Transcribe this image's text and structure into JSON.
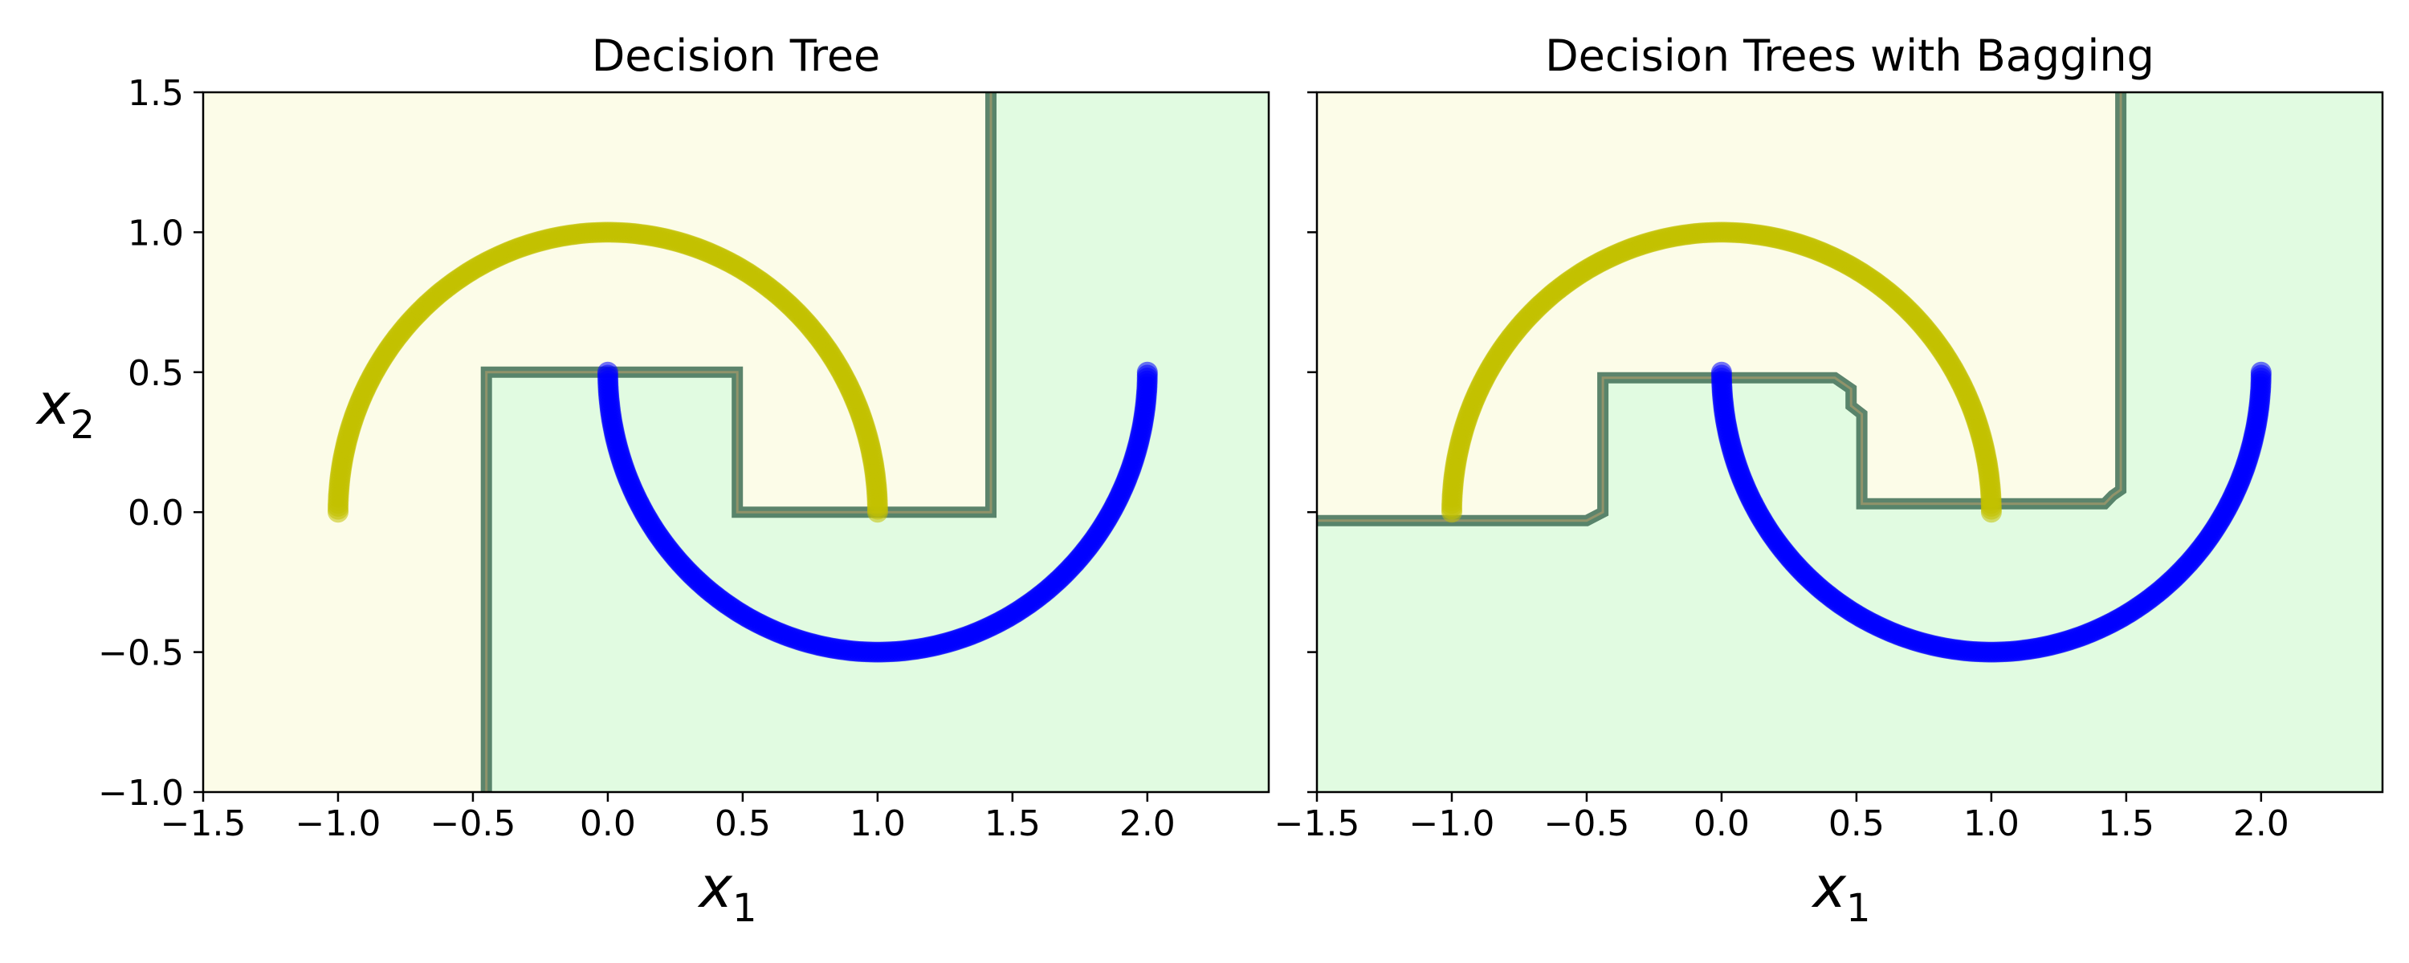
{
  "chart_data": [
    {
      "type": "scatter",
      "title": "Decision Tree",
      "xlabel": "x",
      "xlabel_sub": "1",
      "ylabel": "x",
      "ylabel_sub": "2",
      "xlim": [
        -1.5,
        2.45
      ],
      "ylim": [
        -1.0,
        1.5
      ],
      "xticks": [
        -1.5,
        -1.0,
        -0.5,
        0.0,
        0.5,
        1.0,
        1.5,
        2.0
      ],
      "xtick_labels": [
        "−1.5",
        "−1.0",
        "−0.5",
        "0.0",
        "0.5",
        "1.0",
        "1.5",
        "2.0"
      ],
      "yticks": [
        -1.0,
        -0.5,
        0.0,
        0.5,
        1.0,
        1.5
      ],
      "ytick_labels": [
        "−1.0",
        "−0.5",
        "0.0",
        "0.5",
        "1.0",
        "1.5"
      ],
      "show_ytick_labels": true,
      "grid": false,
      "regions": {
        "class_0_color": "#fcfce8",
        "class_1_color": "#e1fbe1",
        "class_0_polygon": [
          [
            -1.5,
            -1.0
          ],
          [
            -0.45,
            -1.0
          ],
          [
            -0.45,
            0.5
          ],
          [
            0.48,
            0.5
          ],
          [
            0.48,
            0.0
          ],
          [
            1.42,
            0.0
          ],
          [
            1.42,
            1.5
          ],
          [
            -1.5,
            1.5
          ]
        ]
      },
      "boundary": [
        [
          -0.45,
          -1.0
        ],
        [
          -0.45,
          0.5
        ],
        [
          0.48,
          0.5
        ],
        [
          0.48,
          0.0
        ],
        [
          1.42,
          0.0
        ],
        [
          1.42,
          1.5
        ]
      ],
      "boundary_color": "#3f6f56",
      "series": [
        {
          "marker_color": "#c3c100",
          "curve": "upper_moon",
          "center": [
            0.0,
            0.0
          ],
          "radius": 1.0
        },
        {
          "marker_color": "#0000ff",
          "curve": "lower_moon",
          "center": [
            1.0,
            0.5
          ],
          "radius": 1.0
        }
      ]
    },
    {
      "type": "scatter",
      "title": "Decision Trees with Bagging",
      "xlabel": "x",
      "xlabel_sub": "1",
      "ylabel": "",
      "ylabel_sub": "",
      "xlim": [
        -1.5,
        2.45
      ],
      "ylim": [
        -1.0,
        1.5
      ],
      "xticks": [
        -1.5,
        -1.0,
        -0.5,
        0.0,
        0.5,
        1.0,
        1.5,
        2.0
      ],
      "xtick_labels": [
        "−1.5",
        "−1.0",
        "−0.5",
        "0.0",
        "0.5",
        "1.0",
        "1.5",
        "2.0"
      ],
      "yticks": [
        -1.0,
        -0.5,
        0.0,
        0.5,
        1.0,
        1.5
      ],
      "ytick_labels": [],
      "show_ytick_labels": false,
      "grid": false,
      "regions": {
        "class_0_color": "#fcfce8",
        "class_1_color": "#e1fbe1",
        "class_0_polygon": [
          [
            -1.5,
            -0.03
          ],
          [
            -0.5,
            -0.03
          ],
          [
            -0.44,
            0.0
          ],
          [
            -0.44,
            0.48
          ],
          [
            0.42,
            0.48
          ],
          [
            0.48,
            0.44
          ],
          [
            0.48,
            0.38
          ],
          [
            0.52,
            0.35
          ],
          [
            0.52,
            0.03
          ],
          [
            1.42,
            0.03
          ],
          [
            1.45,
            0.06
          ],
          [
            1.48,
            0.08
          ],
          [
            1.48,
            1.5
          ],
          [
            -1.5,
            1.5
          ]
        ]
      },
      "boundary": [
        [
          -1.5,
          -0.03
        ],
        [
          -0.5,
          -0.03
        ],
        [
          -0.44,
          0.0
        ],
        [
          -0.44,
          0.48
        ],
        [
          0.42,
          0.48
        ],
        [
          0.48,
          0.44
        ],
        [
          0.48,
          0.38
        ],
        [
          0.52,
          0.35
        ],
        [
          0.52,
          0.03
        ],
        [
          1.42,
          0.03
        ],
        [
          1.45,
          0.06
        ],
        [
          1.48,
          0.08
        ],
        [
          1.48,
          1.5
        ]
      ],
      "boundary_color": "#3f6f56",
      "series": [
        {
          "marker_color": "#c3c100",
          "curve": "upper_moon",
          "center": [
            0.0,
            0.0
          ],
          "radius": 1.0
        },
        {
          "marker_color": "#0000ff",
          "curve": "lower_moon",
          "center": [
            1.0,
            0.5
          ],
          "radius": 1.0
        }
      ]
    }
  ]
}
